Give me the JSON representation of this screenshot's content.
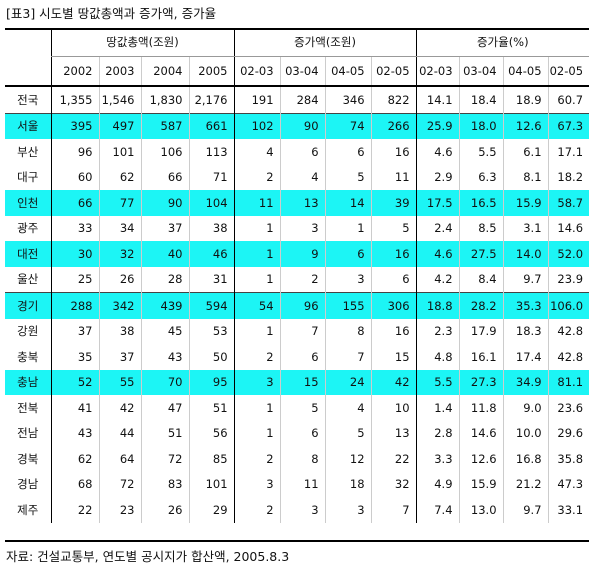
{
  "caption": "[표3] 시도별 땅값총액과 증가액, 증가율",
  "source": "자료: 건설교통부, 연도별 공시지가 합산액, 2005.8.3",
  "groups": [
    "땅값총액(조원)",
    "증가액(조원)",
    "증가율(%)"
  ],
  "years": [
    "2002",
    "2003",
    "2004",
    "2005",
    "02-03",
    "03-04",
    "04-05",
    "02-05",
    "02-03",
    "03-04",
    "04-05",
    "02-05"
  ],
  "colors": {
    "highlight": "#1cf5f5"
  },
  "rows": [
    {
      "region": "전국",
      "vals": [
        "1,355",
        "1,546",
        "1,830",
        "2,176",
        "191",
        "284",
        "346",
        "822",
        "14.1",
        "18.4",
        "18.9",
        "60.7"
      ]
    },
    {
      "region": "서울",
      "vals": [
        "395",
        "497",
        "587",
        "661",
        "102",
        "90",
        "74",
        "266",
        "25.9",
        "18.0",
        "12.6",
        "67.3"
      ]
    },
    {
      "region": "부산",
      "vals": [
        "96",
        "101",
        "106",
        "113",
        "4",
        "6",
        "6",
        "16",
        "4.6",
        "5.5",
        "6.1",
        "17.1"
      ]
    },
    {
      "region": "대구",
      "vals": [
        "60",
        "62",
        "66",
        "71",
        "2",
        "4",
        "5",
        "11",
        "2.9",
        "6.3",
        "8.1",
        "18.2"
      ]
    },
    {
      "region": "인천",
      "vals": [
        "66",
        "77",
        "90",
        "104",
        "11",
        "13",
        "14",
        "39",
        "17.5",
        "16.5",
        "15.9",
        "58.7"
      ]
    },
    {
      "region": "광주",
      "vals": [
        "33",
        "34",
        "37",
        "38",
        "1",
        "3",
        "1",
        "5",
        "2.4",
        "8.5",
        "3.1",
        "14.6"
      ]
    },
    {
      "region": "대전",
      "vals": [
        "30",
        "32",
        "40",
        "46",
        "1",
        "9",
        "6",
        "16",
        "4.6",
        "27.5",
        "14.0",
        "52.0"
      ]
    },
    {
      "region": "울산",
      "vals": [
        "25",
        "26",
        "28",
        "31",
        "1",
        "2",
        "3",
        "6",
        "4.2",
        "8.4",
        "9.7",
        "23.9"
      ]
    },
    {
      "region": "경기",
      "vals": [
        "288",
        "342",
        "439",
        "594",
        "54",
        "96",
        "155",
        "306",
        "18.8",
        "28.2",
        "35.3",
        "106.0"
      ]
    },
    {
      "region": "강원",
      "vals": [
        "37",
        "38",
        "45",
        "53",
        "1",
        "7",
        "8",
        "16",
        "2.3",
        "17.9",
        "18.3",
        "42.8"
      ]
    },
    {
      "region": "충북",
      "vals": [
        "35",
        "37",
        "43",
        "50",
        "2",
        "6",
        "7",
        "15",
        "4.8",
        "16.1",
        "17.4",
        "42.8"
      ]
    },
    {
      "region": "충남",
      "vals": [
        "52",
        "55",
        "70",
        "95",
        "3",
        "15",
        "24",
        "42",
        "5.5",
        "27.3",
        "34.9",
        "81.1"
      ]
    },
    {
      "region": "전북",
      "vals": [
        "41",
        "42",
        "47",
        "51",
        "1",
        "5",
        "4",
        "10",
        "1.4",
        "11.8",
        "9.0",
        "23.6"
      ]
    },
    {
      "region": "전남",
      "vals": [
        "43",
        "44",
        "51",
        "56",
        "1",
        "6",
        "5",
        "13",
        "2.8",
        "14.6",
        "10.0",
        "29.6"
      ]
    },
    {
      "region": "경북",
      "vals": [
        "62",
        "64",
        "72",
        "85",
        "2",
        "8",
        "12",
        "22",
        "3.3",
        "12.6",
        "16.8",
        "35.8"
      ]
    },
    {
      "region": "경남",
      "vals": [
        "68",
        "72",
        "83",
        "101",
        "3",
        "11",
        "18",
        "32",
        "4.9",
        "15.9",
        "21.2",
        "47.3"
      ]
    },
    {
      "region": "제주",
      "vals": [
        "22",
        "23",
        "26",
        "29",
        "2",
        "3",
        "3",
        "7",
        "7.4",
        "13.0",
        "9.7",
        "33.1"
      ]
    }
  ]
}
